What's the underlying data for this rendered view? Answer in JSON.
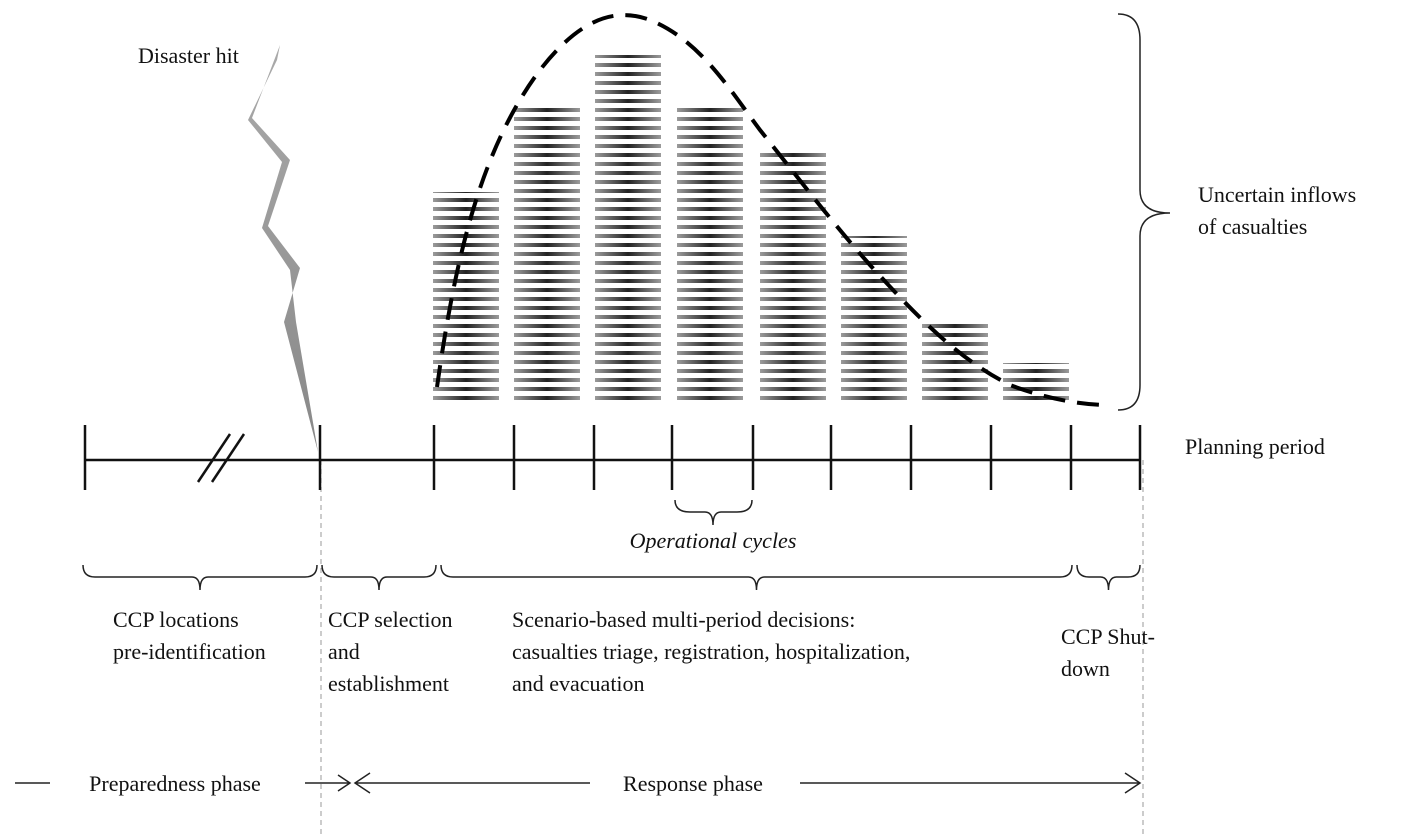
{
  "annotations": {
    "disaster": "Disaster hit",
    "inflows": [
      "Uncertain inflows",
      "of casualties"
    ],
    "planning": "Planning period",
    "cycles": "Operational cycles"
  },
  "stages": [
    {
      "lines": [
        "CCP locations",
        "pre-identification"
      ]
    },
    {
      "lines": [
        "CCP selection",
        "and",
        "establishment"
      ]
    },
    {
      "lines": [
        "Scenario-based multi-period decisions:",
        "casualties triage, registration, hospitalization,",
        "and evacuation"
      ]
    },
    {
      "lines": [
        "CCP Shut-",
        "down"
      ]
    }
  ],
  "phases": {
    "preparedness": "Preparedness phase",
    "response": "Response phase"
  }
}
